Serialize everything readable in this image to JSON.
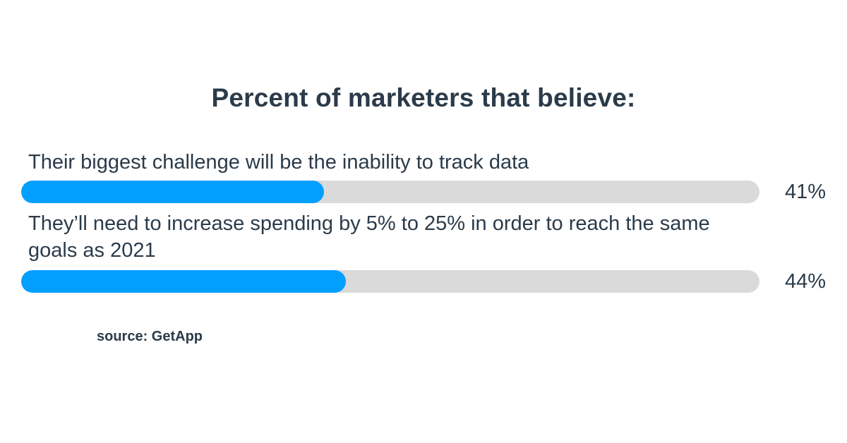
{
  "title": "Percent of marketers that believe:",
  "chart_data": {
    "type": "bar",
    "orientation": "horizontal",
    "title": "Percent of marketers that believe:",
    "categories": [
      "Their biggest challenge will be the inability to track data",
      "They’ll need to increase spending by 5% to 25% in order to reach the same goals as 2021"
    ],
    "values": [
      41,
      44
    ],
    "value_labels": [
      "41%",
      "44%"
    ],
    "xlim": [
      0,
      100
    ],
    "unit": "%",
    "grid": false,
    "legend": "none",
    "colors": {
      "fill": "#039fff",
      "track": "#dadada",
      "text": "#2b3b4a"
    }
  },
  "source": "source: GetApp"
}
